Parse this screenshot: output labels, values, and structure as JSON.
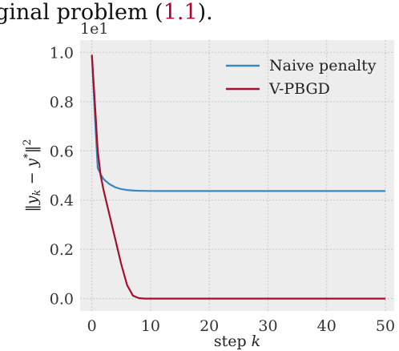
{
  "header_fragment": {
    "before": "ginal problem (",
    "ref": "1.1",
    "after": ")."
  },
  "chart_data": {
    "type": "line",
    "title": "",
    "xlabel": "step k",
    "ylabel": "‖y_k − y*‖²",
    "y_multiplier_label": "1e1",
    "xlim": [
      -2,
      51.5
    ],
    "ylim": [
      -0.05,
      1.05
    ],
    "xticks": [
      0,
      10,
      20,
      30,
      40,
      50
    ],
    "xtick_labels": [
      "0",
      "10",
      "20",
      "30",
      "40",
      "50"
    ],
    "yticks": [
      0.0,
      0.2,
      0.4,
      0.6,
      0.8,
      1.0
    ],
    "ytick_labels": [
      "0.0",
      "0.2",
      "0.4",
      "0.6",
      "0.8",
      "1.0"
    ],
    "grid": true,
    "legend_position": "top-right",
    "series": [
      {
        "name": "Naive penalty",
        "color": "#3b87bf",
        "x": [
          0,
          0.5,
          1,
          1.5,
          2,
          3,
          4,
          5,
          6,
          7,
          8,
          9,
          10,
          12,
          15,
          20,
          30,
          40,
          50
        ],
        "y": [
          0.99,
          0.75,
          0.53,
          0.505,
          0.485,
          0.465,
          0.452,
          0.445,
          0.441,
          0.439,
          0.438,
          0.4375,
          0.4372,
          0.437,
          0.437,
          0.437,
          0.437,
          0.437,
          0.437
        ]
      },
      {
        "name": "V-PBGD",
        "color": "#a50f2d",
        "x": [
          0,
          0.5,
          1,
          1.5,
          2,
          3,
          4,
          5,
          6,
          7,
          8,
          9,
          10,
          15,
          20,
          30,
          40,
          50
        ],
        "y": [
          0.99,
          0.8,
          0.6,
          0.5,
          0.44,
          0.34,
          0.24,
          0.14,
          0.055,
          0.012,
          0.002,
          0.0,
          0.0,
          0.0,
          0.0,
          0.0,
          0.0,
          0.0
        ]
      }
    ]
  }
}
